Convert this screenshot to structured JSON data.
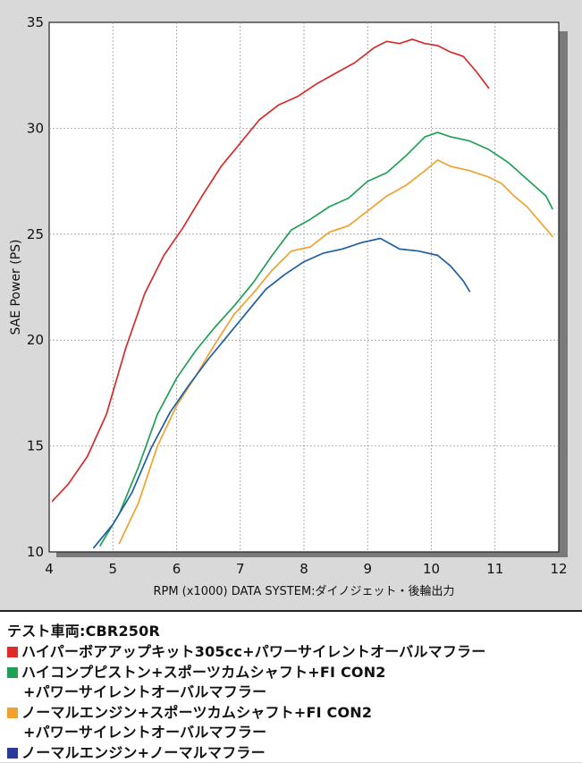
{
  "chart_data": {
    "type": "line",
    "xlabel": "RPM (x1000) DATA SYSTEM:ダイノジェット・後輪出力",
    "ylabel": "SAE Power (PS)",
    "xlim": [
      4,
      12
    ],
    "ylim": [
      10,
      35
    ],
    "xticks": [
      4,
      5,
      6,
      7,
      8,
      9,
      10,
      11,
      12
    ],
    "yticks": [
      10,
      15,
      20,
      25,
      30,
      35
    ],
    "grid": true,
    "series": [
      {
        "color": "#d42b2b",
        "x": [
          4.05,
          4.3,
          4.6,
          4.9,
          5.2,
          5.5,
          5.8,
          6.1,
          6.4,
          6.7,
          7.0,
          7.3,
          7.6,
          7.9,
          8.2,
          8.5,
          8.8,
          9.1,
          9.3,
          9.5,
          9.7,
          9.9,
          10.1,
          10.3,
          10.5,
          10.7,
          10.9
        ],
        "y": [
          12.4,
          13.2,
          14.5,
          16.5,
          19.6,
          22.2,
          24.0,
          25.3,
          26.8,
          28.2,
          29.3,
          30.4,
          31.1,
          31.5,
          32.1,
          32.6,
          33.1,
          33.8,
          34.1,
          34.0,
          34.2,
          34.0,
          33.9,
          33.6,
          33.4,
          32.7,
          31.9
        ]
      },
      {
        "color": "#1fa055",
        "x": [
          4.8,
          5.1,
          5.4,
          5.7,
          6.0,
          6.3,
          6.6,
          6.9,
          7.2,
          7.5,
          7.8,
          8.1,
          8.4,
          8.7,
          9.0,
          9.3,
          9.6,
          9.9,
          10.1,
          10.3,
          10.6,
          10.9,
          11.2,
          11.5,
          11.8,
          11.9
        ],
        "y": [
          10.3,
          11.8,
          14.0,
          16.5,
          18.2,
          19.5,
          20.6,
          21.6,
          22.7,
          24.0,
          25.2,
          25.7,
          26.3,
          26.7,
          27.5,
          27.9,
          28.7,
          29.6,
          29.8,
          29.6,
          29.4,
          29.0,
          28.4,
          27.6,
          26.8,
          26.2
        ]
      },
      {
        "color": "#f0a22e",
        "x": [
          5.1,
          5.4,
          5.7,
          6.0,
          6.3,
          6.6,
          6.9,
          7.2,
          7.5,
          7.8,
          8.1,
          8.4,
          8.7,
          9.0,
          9.3,
          9.6,
          9.9,
          10.1,
          10.3,
          10.6,
          10.9,
          11.1,
          11.3,
          11.5,
          11.7,
          11.9
        ],
        "y": [
          10.4,
          12.3,
          15.0,
          16.9,
          18.3,
          19.8,
          21.2,
          22.2,
          23.3,
          24.2,
          24.4,
          25.1,
          25.4,
          26.1,
          26.8,
          27.3,
          28.0,
          28.5,
          28.2,
          28.0,
          27.7,
          27.4,
          26.8,
          26.3,
          25.6,
          24.9
        ]
      },
      {
        "color": "#1f5ea3",
        "x": [
          4.7,
          5.0,
          5.3,
          5.6,
          5.9,
          6.2,
          6.5,
          6.8,
          7.1,
          7.4,
          7.7,
          8.0,
          8.3,
          8.6,
          8.9,
          9.2,
          9.5,
          9.8,
          10.1,
          10.3,
          10.5,
          10.6
        ],
        "y": [
          10.2,
          11.3,
          12.8,
          14.9,
          16.6,
          17.9,
          19.1,
          20.2,
          21.3,
          22.4,
          23.1,
          23.7,
          24.1,
          24.3,
          24.6,
          24.8,
          24.3,
          24.2,
          24.0,
          23.5,
          22.8,
          22.3
        ]
      }
    ]
  },
  "legend": {
    "heading": "テスト車両:CBR250R",
    "items": [
      {
        "color": "#e02b2b",
        "lines": [
          "ハイパーボアアップキット305cc+パワーサイレントオーバルマフラー"
        ]
      },
      {
        "color": "#1fa055",
        "lines": [
          "ハイコンプピストン+スポーツカムシャフト+FI CON2",
          "+パワーサイレントオーバルマフラー"
        ]
      },
      {
        "color": "#f0a22e",
        "lines": [
          "ノーマルエンジン+スポーツカムシャフト+FI CON2",
          "+パワーサイレントオーバルマフラー"
        ]
      },
      {
        "color": "#2a3a9a",
        "lines": [
          "ノーマルエンジン+ノーマルマフラー"
        ]
      }
    ]
  }
}
